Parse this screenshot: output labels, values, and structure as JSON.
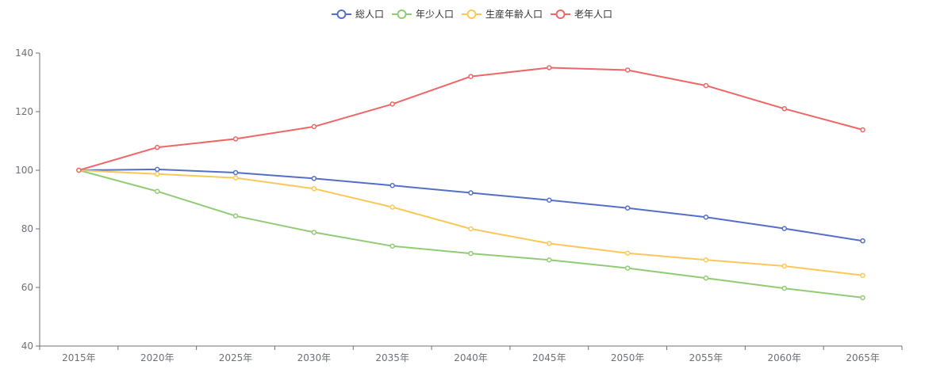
{
  "chart_data": {
    "type": "line",
    "categories": [
      "2015年",
      "2020年",
      "2025年",
      "2030年",
      "2035年",
      "2040年",
      "2045年",
      "2050年",
      "2055年",
      "2060年",
      "2065年"
    ],
    "series": [
      {
        "name": "総人口",
        "color": "#5470c6",
        "values": [
          100,
          100.3,
          99.2,
          97.2,
          94.8,
          92.3,
          89.8,
          87.1,
          84.0,
          80.1,
          75.9
        ]
      },
      {
        "name": "年少人口",
        "color": "#91cc75",
        "values": [
          100,
          92.8,
          84.4,
          78.8,
          74.1,
          71.6,
          69.4,
          66.6,
          63.2,
          59.7,
          56.5
        ]
      },
      {
        "name": "生産年齢人口",
        "color": "#fac858",
        "values": [
          100,
          98.7,
          97.4,
          93.7,
          87.4,
          80.0,
          75.0,
          71.7,
          69.4,
          67.3,
          64.1
        ]
      },
      {
        "name": "老年人口",
        "color": "#ee6666",
        "values": [
          100,
          107.8,
          110.7,
          114.9,
          122.6,
          132.0,
          135.0,
          134.2,
          128.9,
          121.0,
          113.8
        ]
      }
    ],
    "ylim": [
      40,
      140
    ],
    "yticks": [
      "40",
      "60",
      "80",
      "100",
      "120",
      "140"
    ],
    "legend_position": "top-center",
    "grid": false
  }
}
